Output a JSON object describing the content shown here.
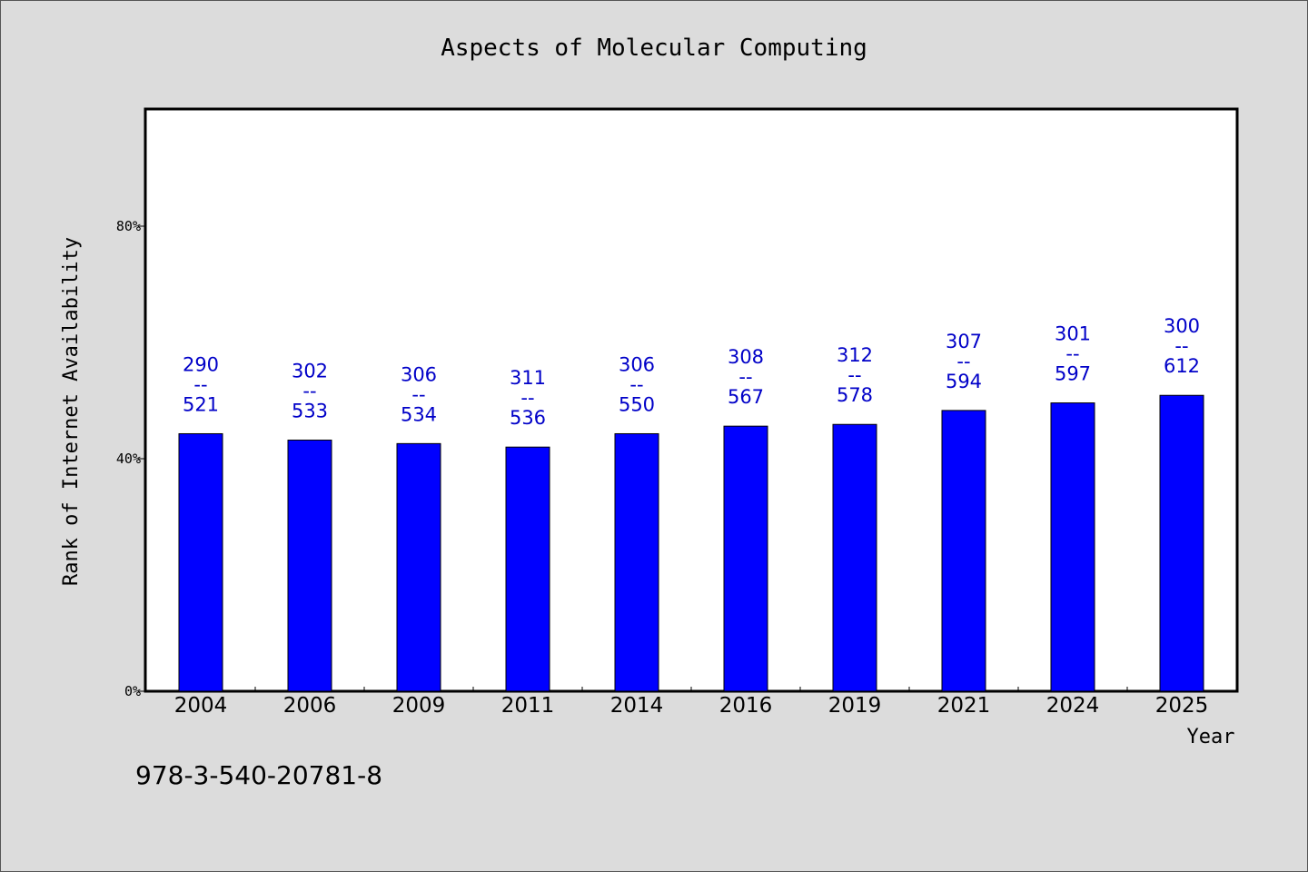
{
  "chart_data": {
    "type": "bar",
    "title": "Aspects of Molecular Computing",
    "xlabel": "Year",
    "ylabel": "Rank of Internet Availability",
    "categories": [
      "2004",
      "2006",
      "2009",
      "2011",
      "2014",
      "2016",
      "2019",
      "2021",
      "2024",
      "2025"
    ],
    "values": [
      44.3,
      43.2,
      42.6,
      42.0,
      44.3,
      45.6,
      45.9,
      48.3,
      49.6,
      50.9
    ],
    "labels": [
      {
        "top": "290",
        "sep": "--",
        "bottom": "521"
      },
      {
        "top": "302",
        "sep": "--",
        "bottom": "533"
      },
      {
        "top": "306",
        "sep": "--",
        "bottom": "534"
      },
      {
        "top": "311",
        "sep": "--",
        "bottom": "536"
      },
      {
        "top": "306",
        "sep": "--",
        "bottom": "550"
      },
      {
        "top": "308",
        "sep": "--",
        "bottom": "567"
      },
      {
        "top": "312",
        "sep": "--",
        "bottom": "578"
      },
      {
        "top": "307",
        "sep": "--",
        "bottom": "594"
      },
      {
        "top": "301",
        "sep": "--",
        "bottom": "597"
      },
      {
        "top": "300",
        "sep": "--",
        "bottom": "612"
      }
    ],
    "yticks": [
      {
        "value": 0,
        "label": "0%"
      },
      {
        "value": 40,
        "label": "40%"
      },
      {
        "value": 80,
        "label": "80%"
      }
    ],
    "ylim": [
      0,
      100
    ],
    "grid": false,
    "bar_color": "#0000ff",
    "label_color": "#0000c8"
  },
  "footer": {
    "isbn": "978-3-540-20781-8"
  }
}
